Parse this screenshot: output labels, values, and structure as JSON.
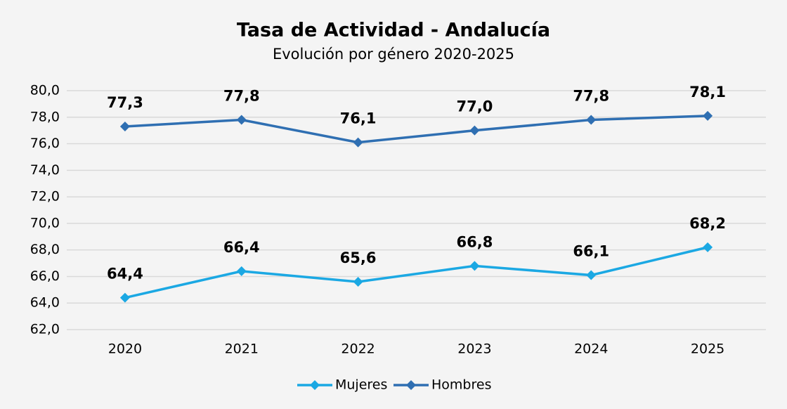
{
  "chart_data": {
    "type": "line",
    "title": "Tasa de Actividad - Andalucía",
    "subtitle": "Evolución por género 2020-2025",
    "categories": [
      "2020",
      "2021",
      "2022",
      "2023",
      "2024",
      "2025"
    ],
    "series": [
      {
        "name": "Mujeres",
        "color": "#1ba8e3",
        "values": [
          64.4,
          66.4,
          65.6,
          66.8,
          66.1,
          68.2
        ],
        "value_labels": [
          "64,4",
          "66,4",
          "65,6",
          "66,8",
          "66,1",
          "68,2"
        ]
      },
      {
        "name": "Hombres",
        "color": "#2f6fb2",
        "values": [
          77.3,
          77.8,
          76.1,
          77.0,
          77.8,
          78.1
        ],
        "value_labels": [
          "77,3",
          "77,8",
          "76,1",
          "77,0",
          "77,8",
          "78,1"
        ]
      }
    ],
    "ylim": [
      62,
      80
    ],
    "yticks": [
      {
        "value": 62,
        "label": "62,0"
      },
      {
        "value": 64,
        "label": "64,0"
      },
      {
        "value": 66,
        "label": "66,0"
      },
      {
        "value": 68,
        "label": "68,0"
      },
      {
        "value": 70,
        "label": "70,0"
      },
      {
        "value": 72,
        "label": "72,0"
      },
      {
        "value": 74,
        "label": "74,0"
      },
      {
        "value": 76,
        "label": "76,0"
      },
      {
        "value": 78,
        "label": "78,0"
      },
      {
        "value": 80,
        "label": "80,0"
      }
    ],
    "grid": true,
    "legend": "bottom"
  }
}
